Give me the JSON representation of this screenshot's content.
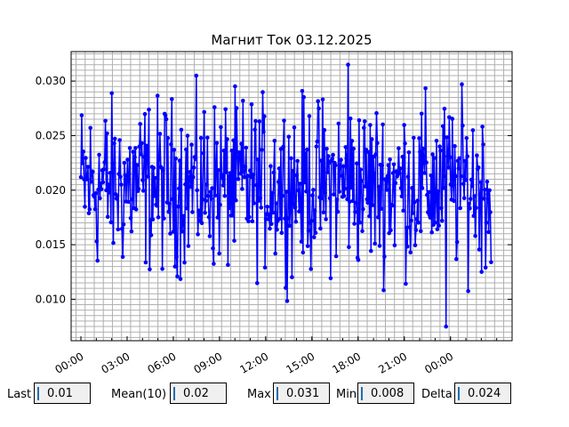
{
  "chart_data": {
    "type": "line",
    "title": "Магнит Ток 03.12.2025",
    "xlabel": "",
    "ylabel": "",
    "x_ticks": [
      "00:00",
      "03:00",
      "06:00",
      "09:00",
      "12:00",
      "15:00",
      "18:00",
      "21:00",
      "00:00"
    ],
    "y_ticks": [
      "0.010",
      "0.015",
      "0.020",
      "0.025",
      "0.030"
    ],
    "xlim_hours": [
      -0.7,
      30.8
    ],
    "ylim": [
      0.0062,
      0.0327
    ],
    "grid": true,
    "legend": "none",
    "series": [
      {
        "color": "#0000ff",
        "marker": "circle",
        "sample_count": 520,
        "x_range_hours": [
          0.0,
          29.3
        ],
        "mean": 0.0205,
        "min": 0.0075,
        "max": 0.0315
      }
    ]
  },
  "stats": {
    "last_label": "Last",
    "last_value": "0.01",
    "mean_label": "Mean(10)",
    "mean_value": "0.02",
    "max_label": "Max",
    "max_value": "0.031",
    "min_label": "Min",
    "min_value": "0.008",
    "delta_label": "Delta",
    "delta_value": "0.024"
  }
}
